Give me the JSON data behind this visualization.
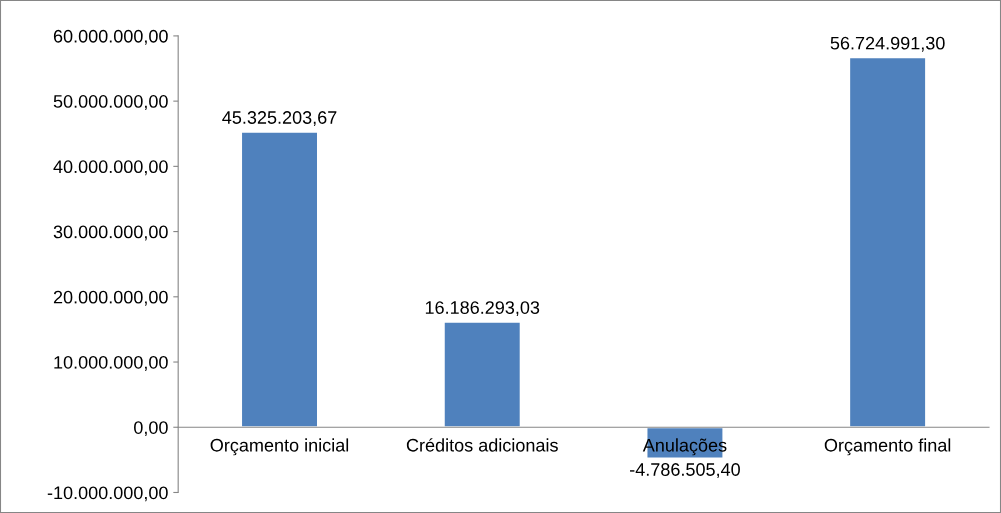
{
  "chart_data": {
    "type": "bar",
    "categories": [
      "Orçamento inicial",
      "Créditos adicionais",
      "Anulações",
      "Orçamento final"
    ],
    "values": [
      45325203.67,
      16186293.03,
      -4786505.4,
      56724991.3
    ],
    "value_labels": [
      "45.325.203,67",
      "16.186.293,03",
      "-4.786.505,40",
      "56.724.991,30"
    ],
    "color": "#4f81bd",
    "ylim": [
      -10000000,
      60000000
    ],
    "yticks": [
      {
        "value": -10000000,
        "label": "-10.000.000,00"
      },
      {
        "value": 0,
        "label": "0,00"
      },
      {
        "value": 10000000,
        "label": "10.000.000,00"
      },
      {
        "value": 20000000,
        "label": "20.000.000,00"
      },
      {
        "value": 30000000,
        "label": "30.000.000,00"
      },
      {
        "value": 40000000,
        "label": "40.000.000,00"
      },
      {
        "value": 50000000,
        "label": "50.000.000,00"
      },
      {
        "value": 60000000,
        "label": "60.000.000,00"
      }
    ],
    "grid": false
  }
}
